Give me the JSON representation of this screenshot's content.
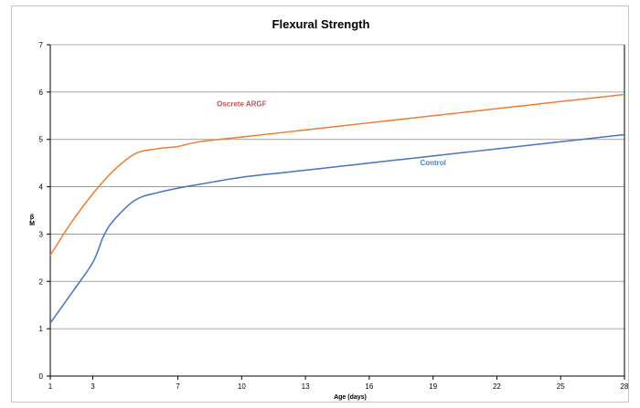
{
  "chart_data": {
    "type": "line",
    "title": "Flexural Strength",
    "xlabel": "Age (days)",
    "ylabel_lines": [
      "β",
      "M"
    ],
    "xlim": [
      1,
      28
    ],
    "ylim": [
      0,
      7
    ],
    "x_ticks": [
      1,
      3,
      7,
      10,
      13,
      16,
      19,
      22,
      25,
      28
    ],
    "x_tick_labels": [
      "1",
      "3",
      "7",
      "10",
      "13",
      "16",
      "19",
      "22",
      "25",
      "28"
    ],
    "y_ticks": [
      0,
      1,
      2,
      3,
      4,
      5,
      6,
      7
    ],
    "y_tick_labels": [
      "0",
      "1",
      "2",
      "3",
      "4",
      "5",
      "6",
      "7"
    ],
    "grid": "horizontal",
    "series": [
      {
        "name": "Oscrete ARGF",
        "color": "#ed7d31",
        "x": [
          1,
          2,
          3,
          4,
          5,
          6,
          7,
          8,
          10,
          12,
          14,
          16,
          18,
          20,
          22,
          24,
          26,
          28
        ],
        "y": [
          2.55,
          3.25,
          3.85,
          4.35,
          4.7,
          4.8,
          4.85,
          4.95,
          5.05,
          5.15,
          5.25,
          5.35,
          5.45,
          5.55,
          5.65,
          5.75,
          5.85,
          5.95
        ]
      },
      {
        "name": "Control",
        "color": "#4472c4",
        "x": [
          1,
          2,
          3,
          3.5,
          4,
          5,
          6,
          7,
          8,
          10,
          12,
          14,
          16,
          18,
          20,
          22,
          24,
          26,
          28
        ],
        "y": [
          1.12,
          1.75,
          2.4,
          2.95,
          3.3,
          3.72,
          3.87,
          3.97,
          4.05,
          4.2,
          4.3,
          4.4,
          4.5,
          4.6,
          4.7,
          4.8,
          4.9,
          5.0,
          5.1
        ]
      }
    ]
  }
}
